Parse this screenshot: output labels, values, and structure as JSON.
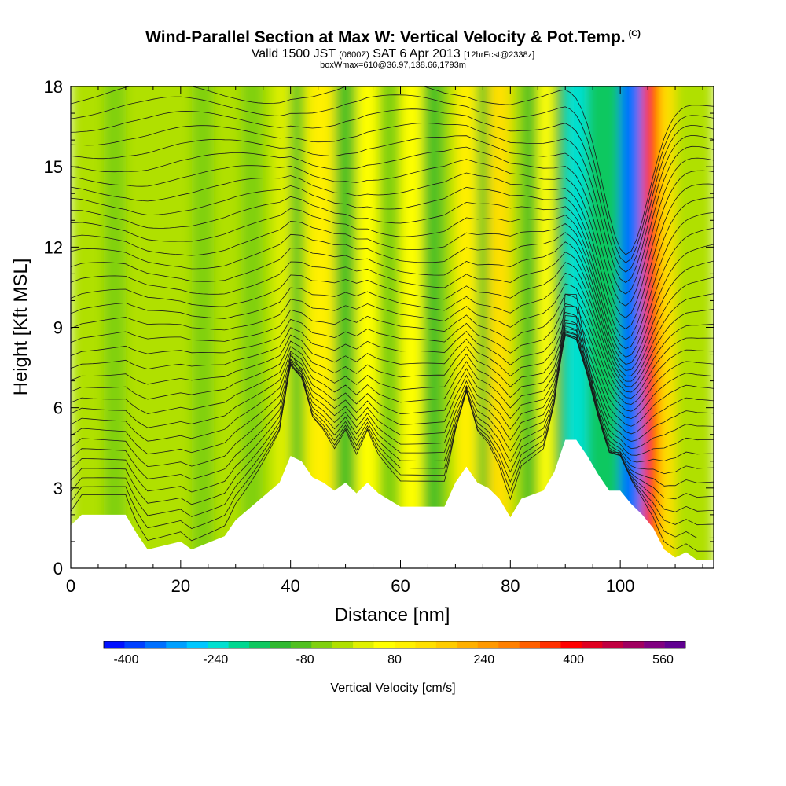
{
  "title": {
    "main": "Wind-Parallel Section at Max W: Vertical Velocity & Pot.Temp.",
    "copyright": "(C)",
    "valid_prefix": "Valid 1500 JST",
    "valid_utc": "(0600Z)",
    "valid_date": "SAT 6 Apr 2013",
    "forecast": "[12hrFcst@2338z]",
    "box_info": "boxWmax=610@36.97,138.66,1793m"
  },
  "chart_data": {
    "type": "heatmap",
    "xlabel": "Distance [nm]",
    "ylabel": "Height [Kft MSL]",
    "xlim": [
      0,
      117
    ],
    "ylim": [
      0,
      18
    ],
    "x_ticks": [
      "0",
      "20",
      "40",
      "60",
      "80",
      "100"
    ],
    "y_ticks": [
      "0",
      "3",
      "6",
      "9",
      "12",
      "15",
      "18"
    ],
    "colorbar": {
      "label": "Vertical Velocity [cm/s]",
      "ticks": [
        "-400",
        "-240",
        "-80",
        "80",
        "240",
        "400",
        "560"
      ],
      "range": [
        -440,
        600
      ],
      "step": 40,
      "colors": [
        "#0010ff",
        "#0040ff",
        "#0070ff",
        "#00a0ff",
        "#00c8ff",
        "#00e0d0",
        "#00d890",
        "#10c860",
        "#30b830",
        "#50c020",
        "#80d010",
        "#b0e000",
        "#e0f000",
        "#ffff00",
        "#fff000",
        "#ffe000",
        "#ffcc00",
        "#ffb000",
        "#ff9900",
        "#ff8000",
        "#ff6000",
        "#ff3000",
        "#ff0000",
        "#e00020",
        "#c00040",
        "#a00060",
        "#800080",
        "#600090"
      ]
    },
    "terrain_profile": {
      "x": [
        0,
        2,
        10,
        12,
        14,
        20,
        22,
        28,
        30,
        34,
        38,
        40,
        42,
        44,
        46,
        48,
        50,
        52,
        54,
        56,
        60,
        64,
        68,
        70,
        72,
        74,
        76,
        78,
        80,
        82,
        86,
        88,
        90,
        92,
        94,
        96,
        98,
        100,
        102,
        104,
        106,
        108,
        110,
        112,
        114,
        117
      ],
      "y": [
        1.6,
        2.0,
        2.0,
        1.3,
        0.7,
        1.0,
        0.7,
        1.2,
        1.8,
        2.5,
        3.2,
        4.2,
        4.0,
        3.4,
        3.2,
        2.9,
        3.2,
        2.8,
        3.2,
        2.8,
        2.3,
        2.3,
        2.3,
        3.2,
        3.8,
        3.2,
        3.0,
        2.6,
        1.9,
        2.6,
        2.9,
        3.6,
        4.8,
        4.8,
        4.2,
        3.5,
        2.9,
        2.9,
        2.4,
        2.0,
        1.5,
        0.7,
        0.4,
        0.6,
        0.3,
        0.3
      ]
    },
    "w_columns": [
      {
        "x0": 0,
        "x1": 117,
        "w": 0
      },
      {
        "x0": 6,
        "x1": 10,
        "w": -30
      },
      {
        "x0": 15,
        "x1": 20,
        "w": 10
      },
      {
        "x0": 22,
        "x1": 26,
        "w": -40
      },
      {
        "x0": 31,
        "x1": 35,
        "w": -40
      },
      {
        "x0": 37,
        "x1": 40,
        "w": 60
      },
      {
        "x0": 40,
        "x1": 42,
        "w": -60
      },
      {
        "x0": 43,
        "x1": 48,
        "w": 120
      },
      {
        "x0": 48,
        "x1": 52,
        "w": -50
      },
      {
        "x0": 52,
        "x1": 56,
        "w": 110
      },
      {
        "x0": 56,
        "x1": 60,
        "w": -40
      },
      {
        "x0": 60,
        "x1": 64,
        "w": 110
      },
      {
        "x0": 64,
        "x1": 68,
        "w": -50
      },
      {
        "x0": 70,
        "x1": 74,
        "w": 130
      },
      {
        "x0": 74,
        "x1": 76,
        "w": -50
      },
      {
        "x0": 76,
        "x1": 80,
        "w": 180
      },
      {
        "x0": 82,
        "x1": 85,
        "w": -70
      },
      {
        "x0": 85,
        "x1": 88,
        "w": 90
      },
      {
        "x0": 88,
        "x1": 90,
        "w": -90
      },
      {
        "x0": 90,
        "x1": 94,
        "w": -230
      },
      {
        "x0": 94,
        "x1": 100,
        "w": -140
      },
      {
        "x0": 100,
        "x1": 104,
        "w": -360
      },
      {
        "x0": 104,
        "x1": 107,
        "w": 420
      },
      {
        "x0": 107,
        "x1": 110,
        "w": 190
      },
      {
        "x0": 110,
        "x1": 117,
        "w": 20
      }
    ],
    "theta_label": "Pot.Temp."
  }
}
